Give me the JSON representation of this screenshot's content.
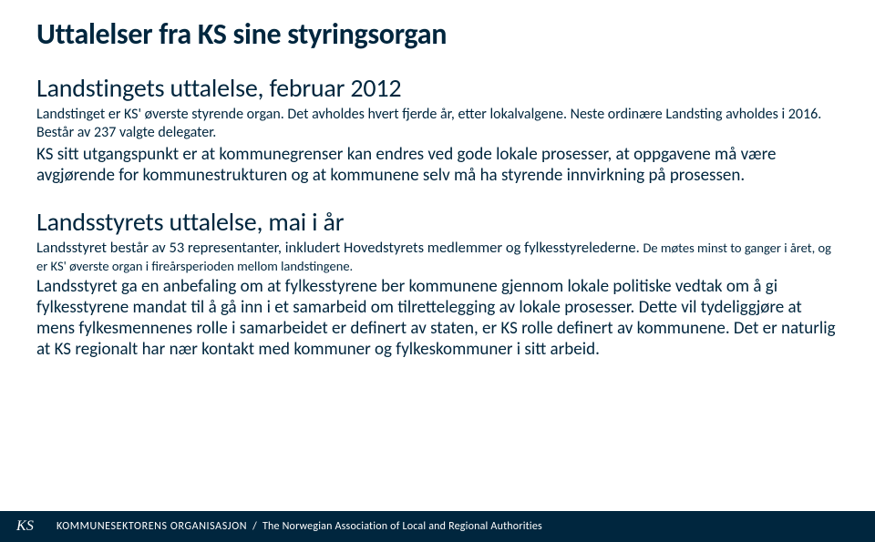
{
  "colors": {
    "text": "#00263e",
    "footer_bg": "#00263e",
    "footer_fg": "#ffffff",
    "page_bg": "#ffffff"
  },
  "title": "Uttalelser fra KS sine styringsorgan",
  "section1": {
    "heading": "Landstingets uttalelse, februar 2012",
    "intro": "Landstinget er KS' øverste styrende organ. Det avholdes hvert fjerde år, etter lokalvalgene. Neste ordinære Landsting avholdes i 2016. Består av 237 valgte delegater.",
    "body": "KS sitt utgangspunkt er at kommunegrenser kan endres ved gode lokale prosesser, at oppgavene må være avgjørende for kommunestrukturen og at kommunene selv må ha styrende innvirkning på prosessen."
  },
  "section2": {
    "heading": "Landsstyrets uttalelse, mai i år",
    "intro_part1": "Landsstyret består av 53 representanter, inkludert Hovedstyrets medlemmer og fylkesstyrelederne. ",
    "intro_part2": "De møtes minst to ganger i året, og er KS' øverste organ i fireårsperioden mellom landstingene.",
    "body": "Landsstyret ga en anbefaling om at fylkesstyrene ber kommunene gjennom lokale politiske vedtak om å gi fylkesstyrene mandat til å gå inn i et samarbeid om tilrettelegging av lokale prosesser. Dette vil tydeliggjøre at mens fylkesmennenes rolle i samarbeidet er definert av staten, er KS rolle definert av kommunene. Det er naturlig at KS regionalt har nær kontakt med kommuner og fylkeskommuner i sitt arbeid."
  },
  "footer": {
    "logo": "KS",
    "brand": "KOMMUNESEKTORENS ORGANISASJON",
    "separator": "/",
    "sub": "The Norwegian Association of Local and Regional Authorities"
  }
}
